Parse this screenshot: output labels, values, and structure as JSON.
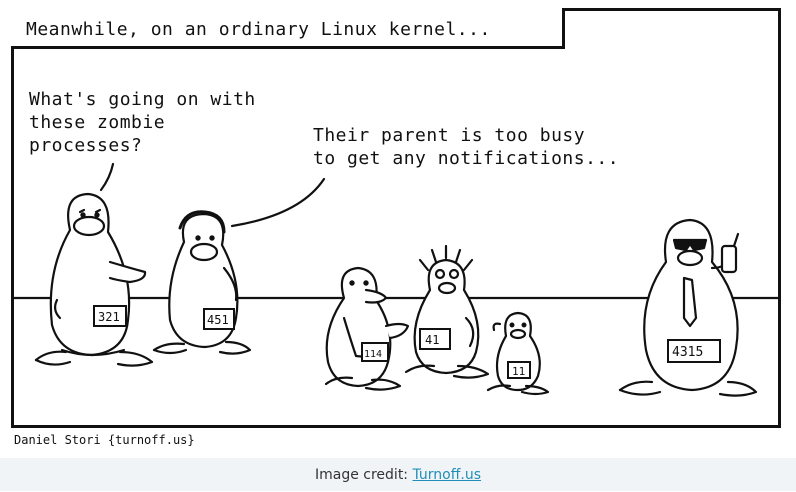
{
  "comic": {
    "caption": "Meanwhile, on an ordinary Linux kernel...",
    "speech_left": "What's going on with\nthese zombie\nprocesses?",
    "speech_right": "Their parent is too busy\nto get any notifications...",
    "signature": "Daniel Stori {turnoff.us}",
    "tags": {
      "p1": "321",
      "p2": "451",
      "p3": "114",
      "p4": "41",
      "p5": "11",
      "p6": "4315"
    }
  },
  "footer": {
    "prefix": "Image credit: ",
    "link_label": "Turnoff.us"
  }
}
